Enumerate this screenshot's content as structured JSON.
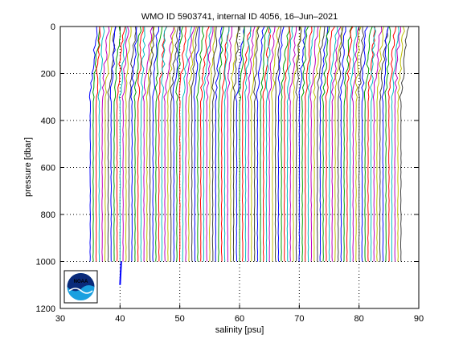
{
  "chart_data": {
    "type": "line",
    "title": "WMO ID 5903741, internal ID 4056, 16–Jun–2021",
    "xlabel": "salinity [psu]",
    "ylabel": "pressure [dbar]",
    "xlim": [
      30,
      90
    ],
    "ylim": [
      1200,
      0
    ],
    "y_axis_inverted": true,
    "x_ticks": [
      30,
      40,
      50,
      60,
      70,
      80,
      90
    ],
    "y_ticks": [
      0,
      200,
      400,
      600,
      800,
      1000,
      1200
    ],
    "grid": true,
    "grid_style": "dotted",
    "legend": "none",
    "description_of_series": "waterfall of salinity profiles, each offset ~0.5 psu to the right",
    "profile_count": 105,
    "first_profile_base_salinity": 35.0,
    "profile_offset_psu": 0.5,
    "max_pressure": 1000,
    "series_colors": [
      "#0000ff",
      "#00a000",
      "#ff0000",
      "#00bfbf",
      "#bf00bf",
      "#bfbf00",
      "#404040"
    ],
    "outlier_profile": {
      "salinity": 40.2,
      "pressure_start": 1000,
      "pressure_end": 1100,
      "color": "#0000ff"
    }
  },
  "logo": {
    "text": "NOAA",
    "colors": [
      "#0a2a7a",
      "#1aa0e0",
      "#ffffff"
    ]
  }
}
